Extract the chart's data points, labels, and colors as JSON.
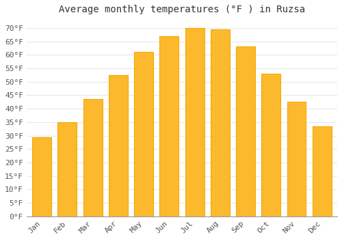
{
  "title": "Average monthly temperatures (°F ) in Ruzsa",
  "months": [
    "Jan",
    "Feb",
    "Mar",
    "Apr",
    "May",
    "Jun",
    "Jul",
    "Aug",
    "Sep",
    "Oct",
    "Nov",
    "Dec"
  ],
  "values": [
    29.5,
    35.0,
    43.5,
    52.5,
    61.0,
    67.0,
    70.0,
    69.5,
    63.0,
    53.0,
    42.5,
    33.5
  ],
  "bar_color_top": "#FDB92E",
  "bar_color_bottom": "#F5A800",
  "background_color": "#ffffff",
  "grid_color": "#e8e8e8",
  "ylim": [
    0,
    73
  ],
  "yticks": [
    0,
    5,
    10,
    15,
    20,
    25,
    30,
    35,
    40,
    45,
    50,
    55,
    60,
    65,
    70
  ],
  "title_fontsize": 10,
  "tick_fontsize": 8,
  "font_family": "monospace",
  "bar_width": 0.75
}
